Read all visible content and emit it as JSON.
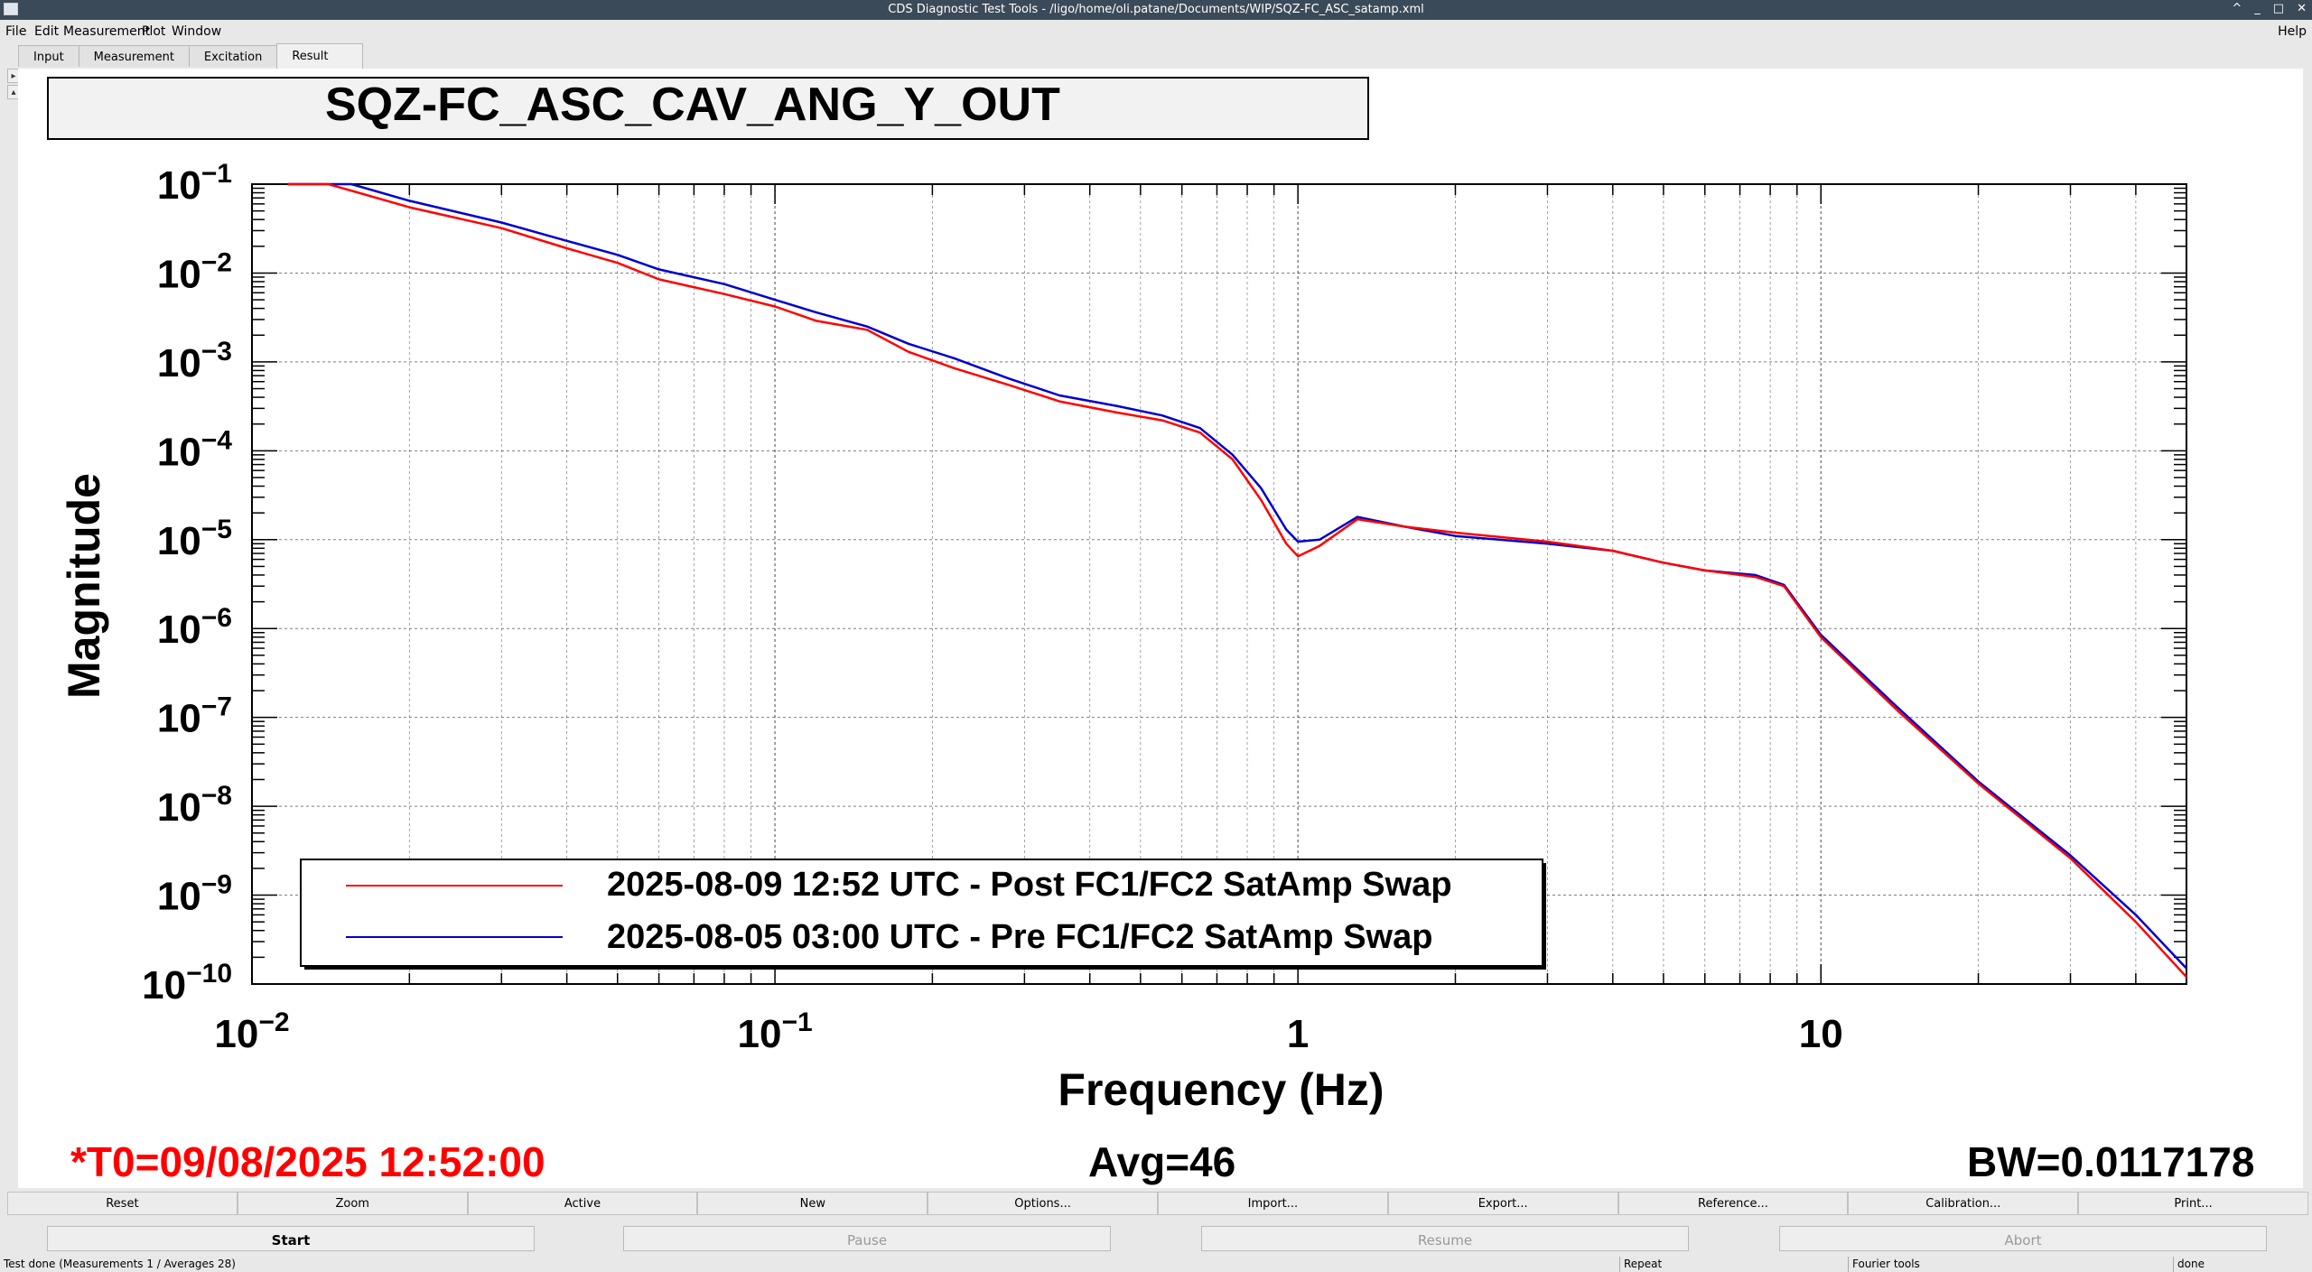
{
  "window": {
    "title": "CDS Diagnostic Test Tools - /ligo/home/oli.patane/Documents/WIP/SQZ-FC_ASC_satamp.xml"
  },
  "menu": {
    "items": [
      "File",
      "Edit",
      "Measurement",
      "Plot",
      "Window"
    ],
    "help": "Help"
  },
  "tabs": [
    "Input",
    "Measurement",
    "Excitation",
    "Result"
  ],
  "plot": {
    "title": "SQZ-FC_ASC_CAV_ANG_Y_OUT",
    "legend": [
      {
        "label": "2025-08-09 12:52 UTC - Post FC1/FC2 SatAmp Swap",
        "color": "#ff0000"
      },
      {
        "label": "2025-08-05 03:00 UTC - Pre FC1/FC2 SatAmp Swap",
        "color": "#0000cc"
      }
    ]
  },
  "chart_data": {
    "type": "line",
    "xlabel": "Frequency (Hz)",
    "ylabel": "Magnitude",
    "xscale": "log",
    "yscale": "log",
    "xlim": [
      0.01,
      50
    ],
    "ylim": [
      1e-10,
      0.1
    ],
    "grid": true,
    "legend_position": "bottom-left",
    "x_ticks": [
      {
        "value": 0.01,
        "base": "10",
        "exp": "−2"
      },
      {
        "value": 0.1,
        "base": "10",
        "exp": "−1"
      },
      {
        "value": 1,
        "base": "1",
        "exp": ""
      },
      {
        "value": 10,
        "base": "10",
        "exp": ""
      }
    ],
    "y_ticks": [
      {
        "value": 0.1,
        "base": "10",
        "exp": "−1"
      },
      {
        "value": 0.01,
        "base": "10",
        "exp": "−2"
      },
      {
        "value": 0.001,
        "base": "10",
        "exp": "−3"
      },
      {
        "value": 0.0001,
        "base": "10",
        "exp": "−4"
      },
      {
        "value": 1e-05,
        "base": "10",
        "exp": "−5"
      },
      {
        "value": 1e-06,
        "base": "10",
        "exp": "−6"
      },
      {
        "value": 1e-07,
        "base": "10",
        "exp": "−7"
      },
      {
        "value": 1e-08,
        "base": "10",
        "exp": "−8"
      },
      {
        "value": 1e-09,
        "base": "10",
        "exp": "−9"
      },
      {
        "value": 1e-10,
        "base": "10",
        "exp": "−10"
      }
    ],
    "series": [
      {
        "name": "2025-08-09 12:52 UTC - Post FC1/FC2 SatAmp Swap",
        "color": "#ff0000",
        "points": [
          [
            0.0117,
            0.1
          ],
          [
            0.014,
            0.1
          ],
          [
            0.02,
            0.055
          ],
          [
            0.03,
            0.032
          ],
          [
            0.04,
            0.019
          ],
          [
            0.05,
            0.013
          ],
          [
            0.06,
            0.0085
          ],
          [
            0.08,
            0.0058
          ],
          [
            0.1,
            0.0042
          ],
          [
            0.12,
            0.0029
          ],
          [
            0.15,
            0.0023
          ],
          [
            0.18,
            0.0013
          ],
          [
            0.22,
            0.00085
          ],
          [
            0.28,
            0.00055
          ],
          [
            0.35,
            0.00036
          ],
          [
            0.45,
            0.00027
          ],
          [
            0.55,
            0.00022
          ],
          [
            0.65,
            0.00016
          ],
          [
            0.75,
            8e-05
          ],
          [
            0.85,
            2.8e-05
          ],
          [
            0.95,
            9e-06
          ],
          [
            1.0,
            6.5e-06
          ],
          [
            1.1,
            8.5e-06
          ],
          [
            1.3,
            1.7e-05
          ],
          [
            1.6,
            1.4e-05
          ],
          [
            2,
            1.2e-05
          ],
          [
            3,
            9.5e-06
          ],
          [
            4,
            7.5e-06
          ],
          [
            5,
            5.5e-06
          ],
          [
            6,
            4.5e-06
          ],
          [
            7.5,
            3.8e-06
          ],
          [
            8.5,
            3e-06
          ],
          [
            10,
            8e-07
          ],
          [
            14,
            1.2e-07
          ],
          [
            20,
            1.8e-08
          ],
          [
            30,
            2.6e-09
          ],
          [
            40,
            5e-10
          ],
          [
            50,
            1.2e-10
          ]
        ]
      },
      {
        "name": "2025-08-05 03:00 UTC - Pre FC1/FC2 SatAmp Swap",
        "color": "#0000cc",
        "points": [
          [
            0.0117,
            0.1
          ],
          [
            0.0155,
            0.1
          ],
          [
            0.02,
            0.065
          ],
          [
            0.03,
            0.037
          ],
          [
            0.04,
            0.023
          ],
          [
            0.05,
            0.016
          ],
          [
            0.06,
            0.011
          ],
          [
            0.08,
            0.0075
          ],
          [
            0.1,
            0.005
          ],
          [
            0.12,
            0.0036
          ],
          [
            0.15,
            0.0025
          ],
          [
            0.18,
            0.0016
          ],
          [
            0.22,
            0.0011
          ],
          [
            0.28,
            0.00065
          ],
          [
            0.35,
            0.00042
          ],
          [
            0.45,
            0.00032
          ],
          [
            0.55,
            0.00025
          ],
          [
            0.65,
            0.00018
          ],
          [
            0.75,
            9e-05
          ],
          [
            0.85,
            3.8e-05
          ],
          [
            0.95,
            1.3e-05
          ],
          [
            1.0,
            9.5e-06
          ],
          [
            1.1,
            1e-05
          ],
          [
            1.3,
            1.8e-05
          ],
          [
            1.6,
            1.4e-05
          ],
          [
            2,
            1.1e-05
          ],
          [
            3,
            9e-06
          ],
          [
            4,
            7.5e-06
          ],
          [
            5,
            5.5e-06
          ],
          [
            6,
            4.5e-06
          ],
          [
            7.5,
            4e-06
          ],
          [
            8.5,
            3.1e-06
          ],
          [
            10,
            8.5e-07
          ],
          [
            14,
            1.3e-07
          ],
          [
            20,
            1.9e-08
          ],
          [
            30,
            2.8e-09
          ],
          [
            40,
            6e-10
          ],
          [
            50,
            1.5e-10
          ]
        ]
      }
    ]
  },
  "info": {
    "t0": "*T0=09/08/2025 12:52:00",
    "t0_color": "#ff0000",
    "avg": "Avg=46",
    "bw": "BW=0.0117178"
  },
  "toolbar": [
    "Reset",
    "Zoom",
    "Active",
    "New",
    "Options...",
    "Import...",
    "Export...",
    "Reference...",
    "Calibration...",
    "Print..."
  ],
  "controls": {
    "start": "Start",
    "pause": "Pause",
    "resume": "Resume",
    "abort": "Abort"
  },
  "status": {
    "main": "Test done (Measurements 1 / Averages 28)",
    "repeat": "Repeat",
    "fourier": "Fourier tools",
    "state": "done"
  }
}
